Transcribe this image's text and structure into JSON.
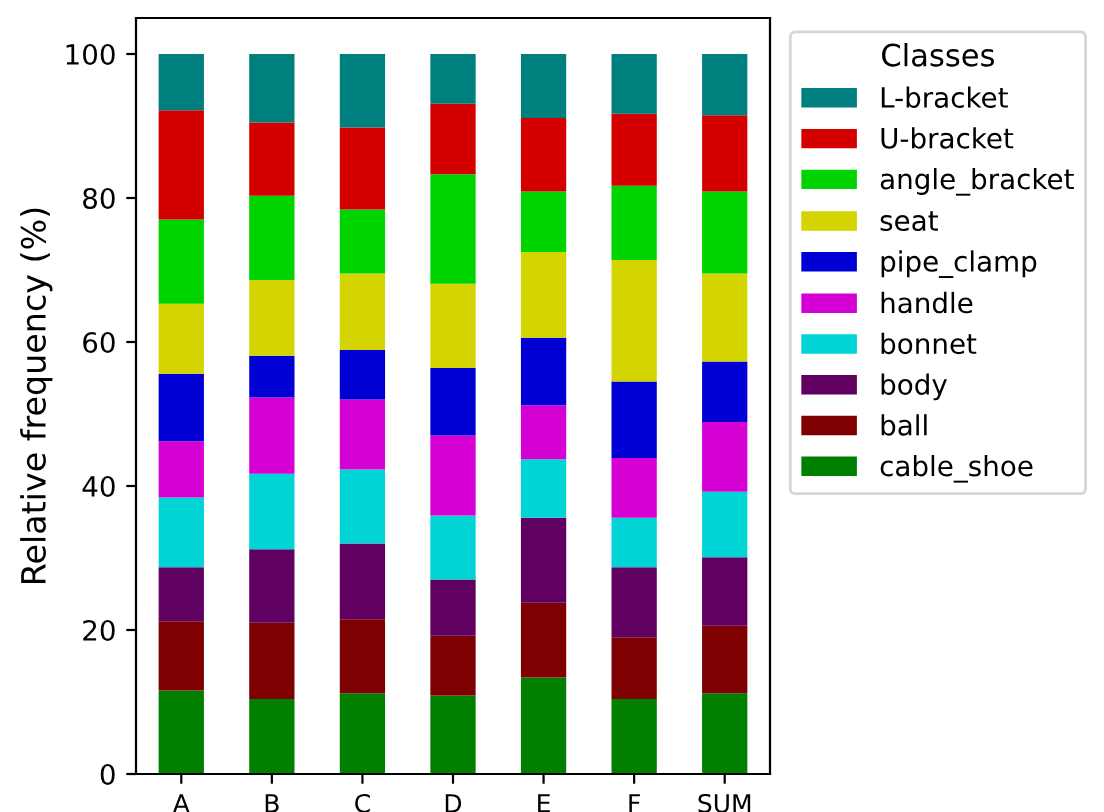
{
  "chart_data": {
    "type": "bar",
    "stacked": true,
    "ylabel": "Relative frequency (%)",
    "legend_title": "Classes",
    "legend": "top right",
    "categories": [
      "A",
      "B",
      "C",
      "D",
      "E",
      "F",
      "SUM"
    ],
    "ylim": [
      0,
      105
    ],
    "yticks": [
      0,
      20,
      40,
      60,
      80,
      100
    ],
    "grid": false,
    "series": [
      {
        "name": "cable_shoe",
        "color": "#007f00",
        "values": [
          11.6,
          10.4,
          11.2,
          10.9,
          13.4,
          10.4,
          11.2
        ]
      },
      {
        "name": "ball",
        "color": "#7f0000",
        "values": [
          9.6,
          10.6,
          10.3,
          8.3,
          10.4,
          8.6,
          9.4
        ]
      },
      {
        "name": "body",
        "color": "#600060",
        "values": [
          7.5,
          10.2,
          10.5,
          7.8,
          11.8,
          9.7,
          9.5
        ]
      },
      {
        "name": "bonnet",
        "color": "#00d4d4",
        "values": [
          9.7,
          10.5,
          10.3,
          8.9,
          8.1,
          6.9,
          9.1
        ]
      },
      {
        "name": "handle",
        "color": "#d400d4",
        "values": [
          7.8,
          10.6,
          9.7,
          11.1,
          7.5,
          8.3,
          9.7
        ]
      },
      {
        "name": "pipe_clamp",
        "color": "#0000d4",
        "values": [
          9.4,
          5.8,
          6.9,
          9.4,
          9.4,
          10.6,
          8.4
        ]
      },
      {
        "name": "seat",
        "color": "#d4d400",
        "values": [
          9.7,
          10.5,
          10.6,
          11.7,
          11.9,
          16.9,
          12.2
        ]
      },
      {
        "name": "angle_bracket",
        "color": "#00d400",
        "values": [
          11.7,
          11.7,
          8.9,
          15.2,
          8.4,
          10.3,
          11.4
        ]
      },
      {
        "name": "U-bracket",
        "color": "#d40000",
        "values": [
          15.2,
          10.2,
          11.4,
          9.8,
          10.2,
          10.0,
          10.6
        ]
      },
      {
        "name": "L-bracket",
        "color": "#007f7f",
        "values": [
          7.8,
          9.5,
          10.2,
          6.9,
          8.9,
          8.3,
          8.5
        ]
      }
    ]
  }
}
